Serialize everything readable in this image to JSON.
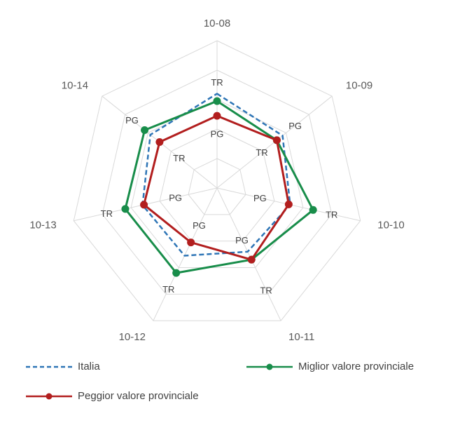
{
  "chart_data": {
    "type": "radar",
    "axes": [
      "10-08",
      "10-09",
      "10-10",
      "10-11",
      "10-12",
      "10-13",
      "10-14"
    ],
    "rmax": 5,
    "rings": 5,
    "series": [
      {
        "name": "Italia",
        "values": [
          3.2,
          2.85,
          2.55,
          2.4,
          2.55,
          2.6,
          2.9
        ],
        "color": "#2e75b6",
        "style": "dashed"
      },
      {
        "name": "Miglior valore provinciale",
        "values": [
          2.95,
          2.6,
          3.35,
          2.7,
          3.2,
          3.2,
          3.15
        ],
        "color": "#188d4a",
        "style": "solid-marker"
      },
      {
        "name": "Peggior valore provinciale",
        "values": [
          2.45,
          2.6,
          2.5,
          2.7,
          2.05,
          2.55,
          2.5
        ],
        "color": "#b21e1e",
        "style": "solid-marker"
      }
    ],
    "annotations": [
      {
        "axis": 0,
        "r": 3.6,
        "text": "TR"
      },
      {
        "axis": 0,
        "r": 1.85,
        "text": "PG"
      },
      {
        "axis": 1,
        "r": 3.4,
        "text": "PG"
      },
      {
        "axis": 1,
        "r": 1.95,
        "text": "TR"
      },
      {
        "axis": 2,
        "r": 4.0,
        "text": "TR"
      },
      {
        "axis": 2,
        "r": 1.5,
        "text": "PG"
      },
      {
        "axis": 3,
        "r": 3.85,
        "text": "TR"
      },
      {
        "axis": 3,
        "r": 1.95,
        "text": "PG"
      },
      {
        "axis": 4,
        "r": 3.8,
        "text": "TR"
      },
      {
        "axis": 4,
        "r": 1.4,
        "text": "PG"
      },
      {
        "axis": 5,
        "r": 3.85,
        "text": "TR"
      },
      {
        "axis": 5,
        "r": 1.45,
        "text": "PG"
      },
      {
        "axis": 6,
        "r": 3.7,
        "text": "PG"
      },
      {
        "axis": 6,
        "r": 1.65,
        "text": "TR"
      }
    ]
  },
  "legend": {
    "italia": "Italia",
    "miglior": "Miglior valore provinciale",
    "peggior": "Peggior valore provinciale"
  }
}
